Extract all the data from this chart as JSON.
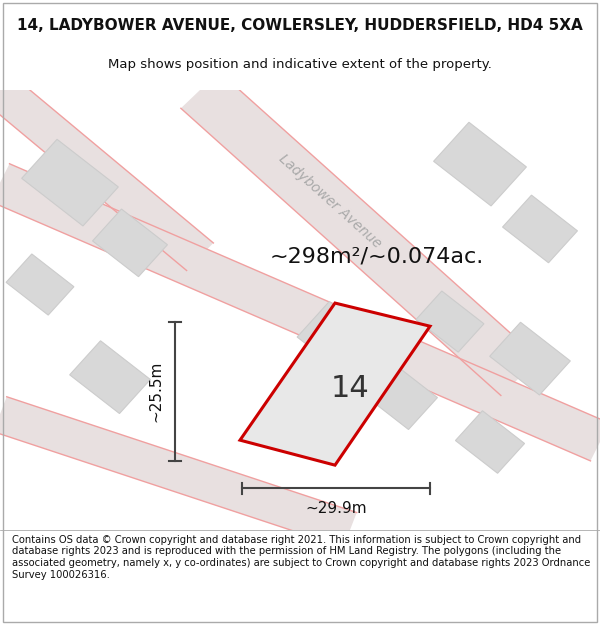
{
  "title_line1": "14, LADYBOWER AVENUE, COWLERSLEY, HUDDERSFIELD, HD4 5XA",
  "title_line2": "Map shows position and indicative extent of the property.",
  "footer_text": "Contains OS data © Crown copyright and database right 2021. This information is subject to Crown copyright and database rights 2023 and is reproduced with the permission of HM Land Registry. The polygons (including the associated geometry, namely x, y co-ordinates) are subject to Crown copyright and database rights 2023 Ordnance Survey 100026316.",
  "area_label": "~298m²/~0.074ac.",
  "property_number": "14",
  "dim_width": "~29.9m",
  "dim_height": "~25.5m",
  "street_name": "Ladybower Avenue",
  "map_bg": "#f8f8f8",
  "map_border": "#cccccc",
  "road_fill": "#e8e8e8",
  "block_fill": "#d8d8d8",
  "block_stroke": "#cccccc",
  "road_line_color": "#f0b0b0",
  "property_fill": "#e8e8e8",
  "property_stroke": "#cc0000",
  "dim_line_color": "#444444",
  "street_label_color": "#aaaaaa",
  "title_color": "#111111",
  "footer_color": "#111111",
  "figsize": [
    6.0,
    6.25
  ],
  "dpi": 100
}
